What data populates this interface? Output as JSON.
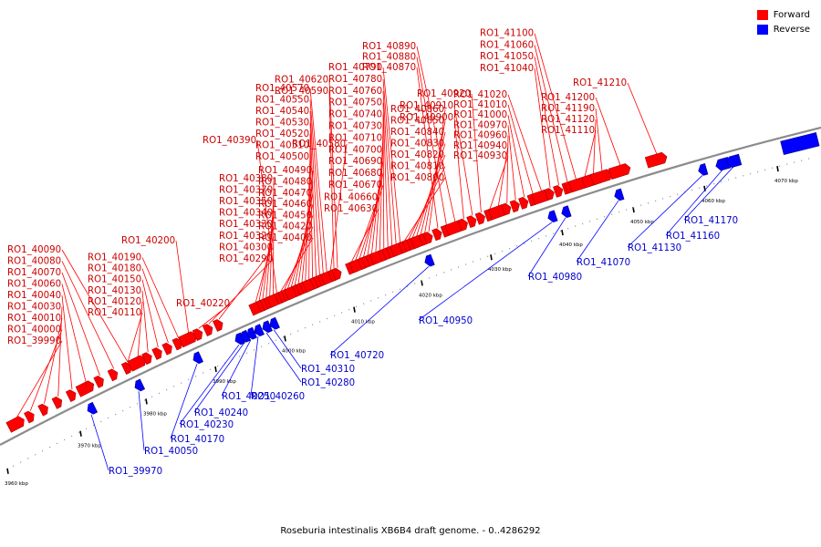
{
  "legend": {
    "forward_label": "Forward",
    "reverse_label": "Reverse",
    "forward_color": "#ff0000",
    "reverse_color": "#0000ff"
  },
  "caption": "Roseburia intestinalis XB6B4 draft genome. - 0..4286292",
  "scale_ticks": [
    "3960 kbp",
    "3970 kbp",
    "3980 kbp",
    "3990 kbp",
    "4000 kbp",
    "4010 kbp",
    "4020 kbp",
    "4030 kbp",
    "4040 kbp",
    "4050 kbp",
    "4060 kbp",
    "4070 kbp"
  ],
  "forward_genes": [
    "RO1_39990",
    "RO1_40000",
    "RO1_40010",
    "RO1_40030",
    "RO1_40040",
    "RO1_40060",
    "RO1_40070",
    "RO1_40080",
    "RO1_40090",
    "RO1_40110",
    "RO1_40120",
    "RO1_40130",
    "RO1_40150",
    "RO1_40180",
    "RO1_40190",
    "RO1_40200",
    "RO1_40220",
    "RO1_40290",
    "RO1_40300",
    "RO1_40320",
    "RO1_40330",
    "RO1_40340",
    "RO1_40350",
    "RO1_40370",
    "RO1_40380",
    "RO1_40390",
    "RO1_40400",
    "RO1_40420",
    "RO1_40450",
    "RO1_40460",
    "RO1_40470",
    "RO1_40480",
    "RO1_40490",
    "RO1_40500",
    "RO1_40510",
    "RO1_40520",
    "RO1_40530",
    "RO1_40540",
    "RO1_40550",
    "RO1_40570",
    "RO1_40580",
    "RO1_40590",
    "RO1_40620",
    "RO1_40630",
    "RO1_40660",
    "RO1_40670",
    "RO1_40680",
    "RO1_40690",
    "RO1_40700",
    "RO1_40710",
    "RO1_40730",
    "RO1_40740",
    "RO1_40750",
    "RO1_40760",
    "RO1_40780",
    "RO1_40790",
    "RO1_40800",
    "RO1_40810",
    "RO1_40820",
    "RO1_40830",
    "RO1_40840",
    "RO1_40850",
    "RO1_40860",
    "RO1_40870",
    "RO1_40880",
    "RO1_40890",
    "RO1_40900",
    "RO1_40910",
    "RO1_40920",
    "RO1_40930",
    "RO1_40940",
    "RO1_40960",
    "RO1_40970",
    "RO1_41000",
    "RO1_41010",
    "RO1_41020",
    "RO1_41040",
    "RO1_41050",
    "RO1_41060",
    "RO1_41100",
    "RO1_41110",
    "RO1_41120",
    "RO1_41190",
    "RO1_41200",
    "RO1_41210"
  ],
  "reverse_genes": [
    "RO1_39970",
    "RO1_40050",
    "RO1_40170",
    "RO1_40230",
    "RO1_40240",
    "RO1_40250",
    "RO1_40260",
    "RO1_40280",
    "RO1_40310",
    "RO1_40720",
    "RO1_40950",
    "RO1_40980",
    "RO1_41070",
    "RO1_41130",
    "RO1_41160",
    "RO1_41170"
  ]
}
